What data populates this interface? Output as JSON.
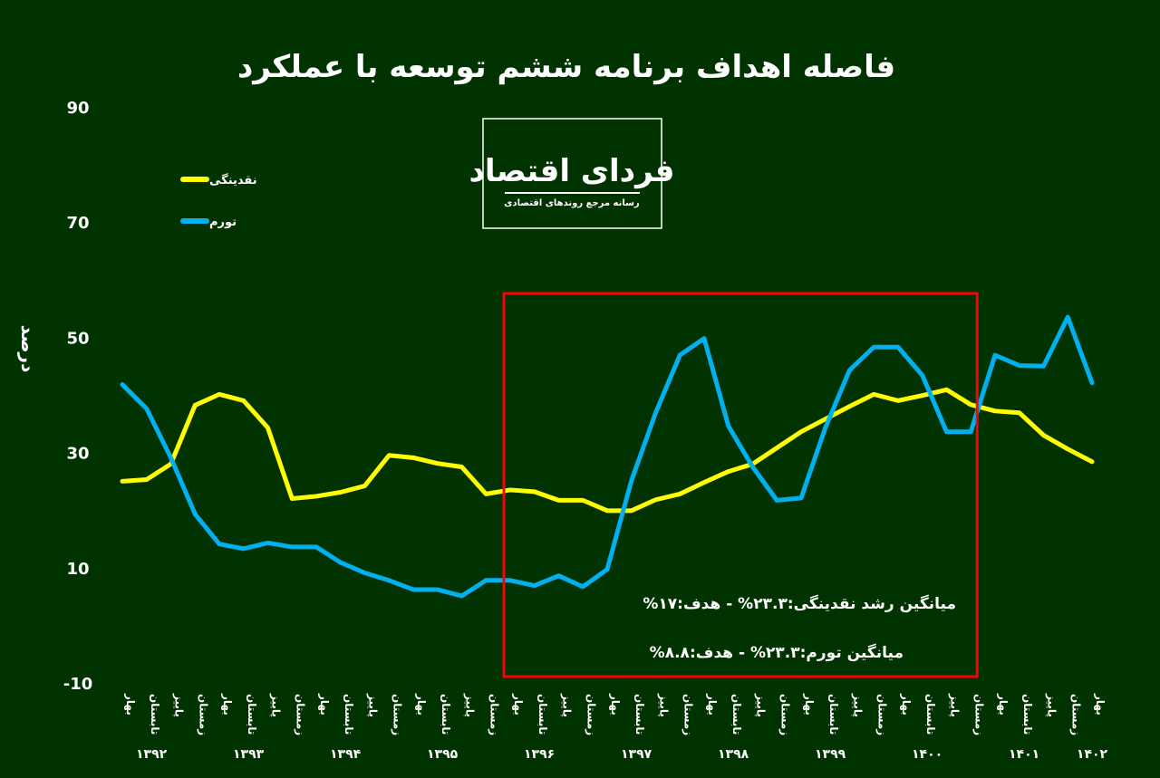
{
  "chart_data": {
    "type": "line",
    "title": "فاصله اهداف برنامه ششم توسعه با عملکرد",
    "ylabel": "درصد",
    "xlabel": "",
    "ylim": [
      -10,
      90
    ],
    "yticks": [
      "90",
      "70",
      "50",
      "30",
      "10",
      "-10"
    ],
    "ytick_values": [
      90,
      70,
      50,
      30,
      10,
      -10
    ],
    "grid": false,
    "legend_placement": "top-left",
    "seasons": [
      "بهار",
      "تابستان",
      "پاییز",
      "زمستان"
    ],
    "years": [
      "۱۳۹۲",
      "۱۳۹۳",
      "۱۳۹۴",
      "۱۳۹۵",
      "۱۳۹۶",
      "۱۳۹۷",
      "۱۳۹۸",
      "۱۳۹۹",
      "۱۴۰۰",
      "۱۴۰۱",
      "۱۴۰۲"
    ],
    "series": [
      {
        "name": "نقدینگی",
        "color": "#ffff00",
        "values": [
          25.0,
          25.3,
          28.0,
          38.2,
          40.1,
          39.0,
          34.3,
          22.0,
          22.4,
          23.1,
          24.2,
          29.5,
          29.1,
          28.1,
          27.5,
          22.8,
          23.5,
          23.2,
          21.7,
          21.7,
          19.9,
          19.9,
          21.8,
          22.8,
          24.8,
          26.7,
          28.0,
          30.8,
          33.6,
          35.8,
          38.0,
          40.1,
          39.0,
          39.9,
          40.9,
          38.3,
          37.2,
          36.9,
          33.0,
          30.6,
          28.4
        ]
      },
      {
        "name": "تورم",
        "color": "#00b0f0",
        "values": [
          41.8,
          37.6,
          29.1,
          19.3,
          14.1,
          13.3,
          14.3,
          13.6,
          13.6,
          10.9,
          9.1,
          7.8,
          6.2,
          6.2,
          5.1,
          7.8,
          7.8,
          6.9,
          8.6,
          6.7,
          9.7,
          25.1,
          36.9,
          46.9,
          49.8,
          34.6,
          27.5,
          21.7,
          22.1,
          34.3,
          44.3,
          48.3,
          48.3,
          43.4,
          33.6,
          33.6,
          46.9,
          45.1,
          45.0,
          53.5,
          42.1
        ]
      }
    ],
    "highlight_box": {
      "color": "#ff0000",
      "from_index": 16,
      "to_index": 35
    },
    "annotations": [
      "میانگین رشد نقدینگی:۲۳.۳%  -  هدف:۱۷%",
      "میانگین تورم:۲۳.۳%   -  هدف:۸.۸%"
    ]
  },
  "logo": {
    "name": "فردای اقتصاد",
    "tagline": "رسانه مرجع روندهای اقتصادی"
  },
  "colors": {
    "background": "#003300",
    "text": "#ffffff"
  }
}
